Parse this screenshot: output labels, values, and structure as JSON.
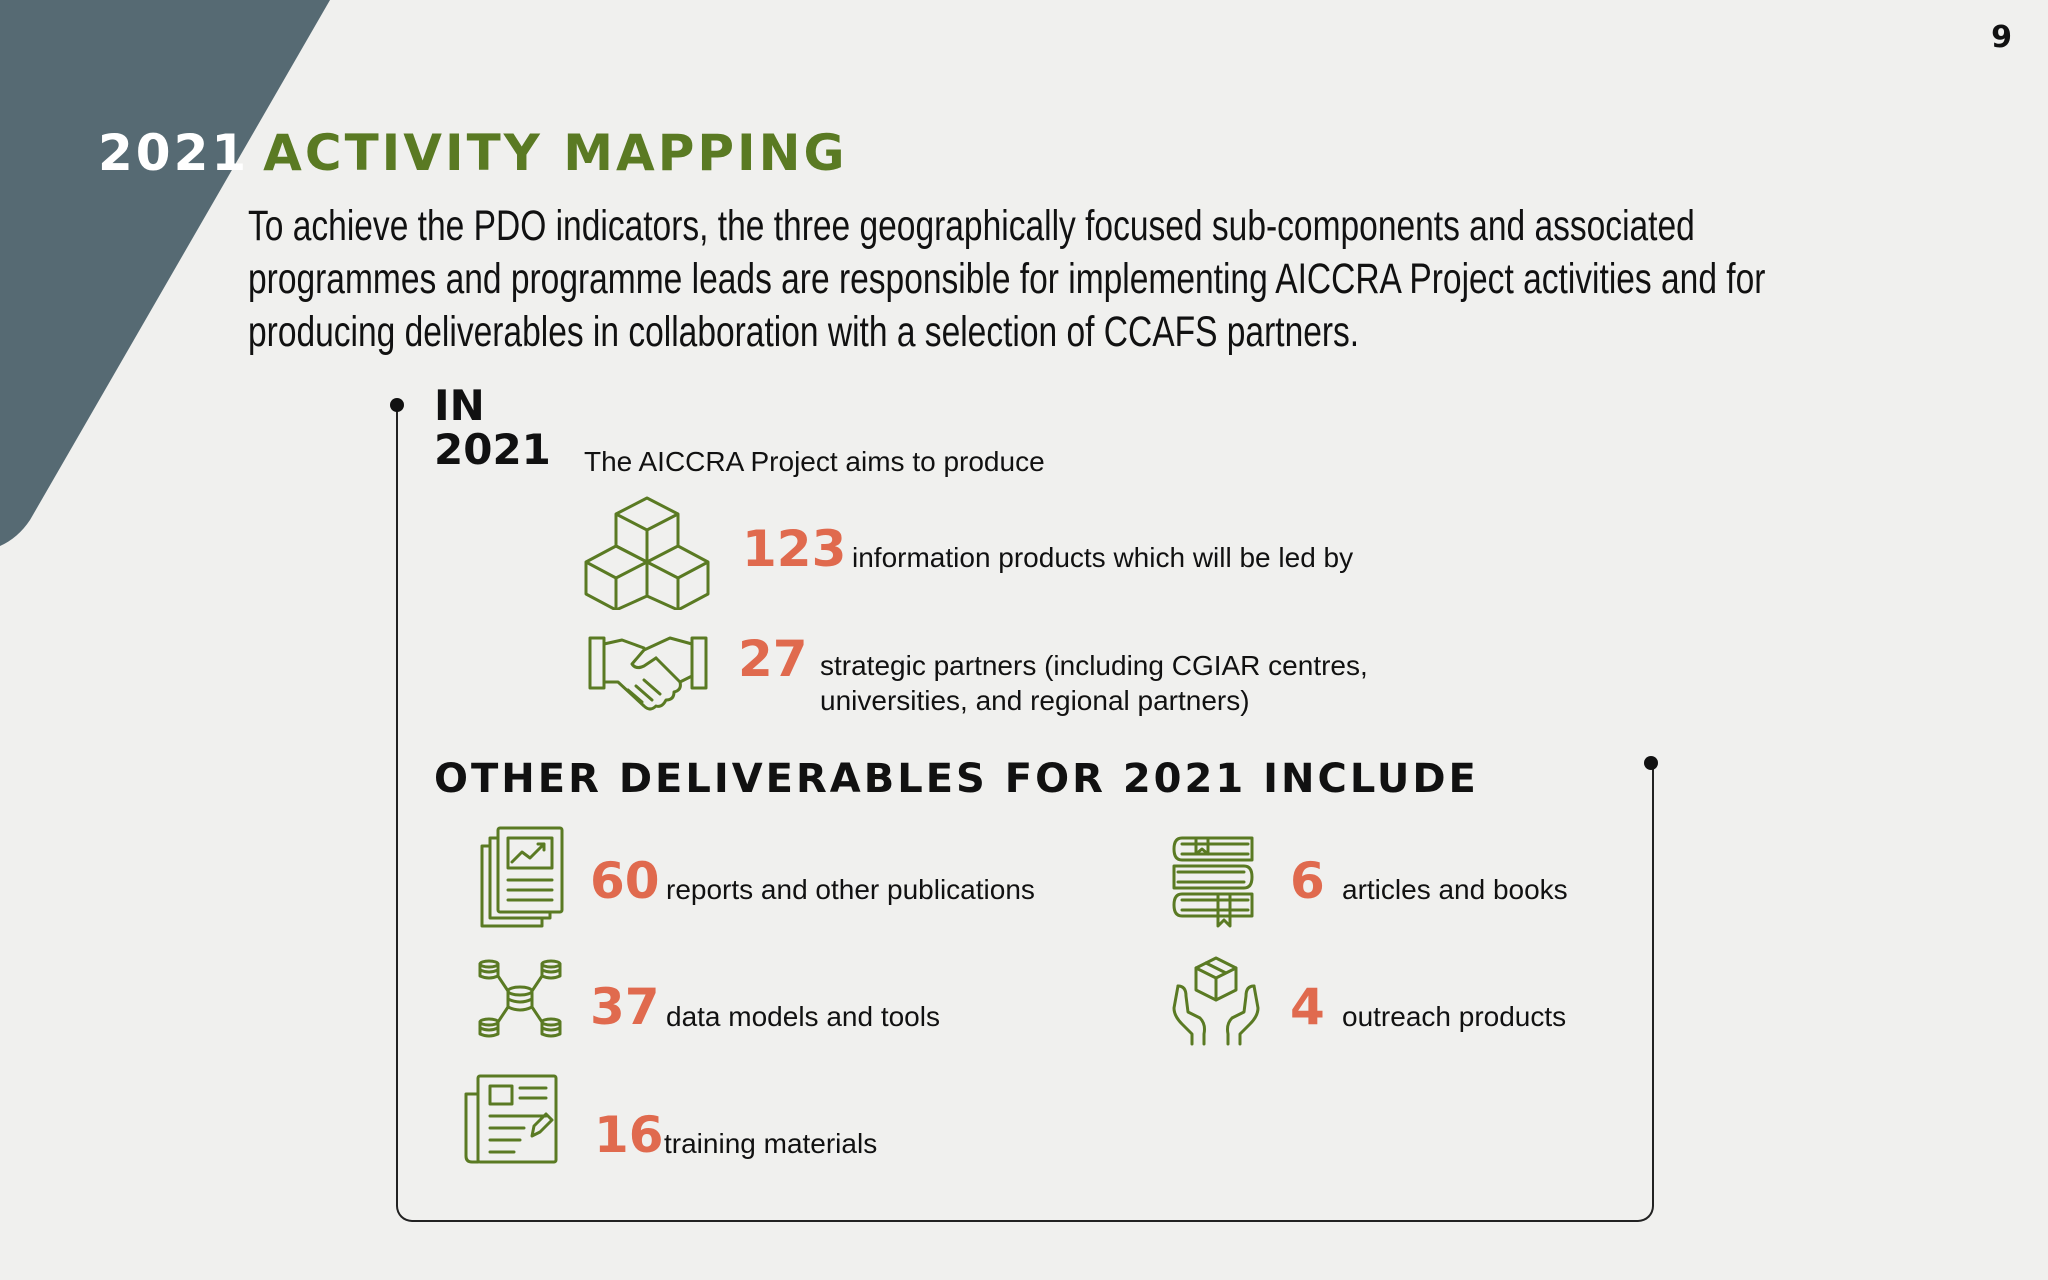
{
  "page_number": "9",
  "title": {
    "year": "2021",
    "main": "ACTIVITY MAPPING"
  },
  "intro_text": "To achieve the PDO indicators, the three geographically focused sub-components and associated programmes and programme leads are responsible for implementing AICCRA Project activities and for producing deliverables in collaboration with a selection of CCAFS partners.",
  "in_year": {
    "line1": "IN",
    "line2": "2021"
  },
  "aims_text": "The AICCRA Project aims to produce",
  "primary": [
    {
      "number": "123",
      "text": "information products which will be led by",
      "icon": "boxes-icon"
    },
    {
      "number": "27",
      "text_line1": "strategic partners (including CGIAR centres,",
      "text_line2": "universities, and regional partners)",
      "icon": "handshake-icon"
    }
  ],
  "other_title": "OTHER DELIVERABLES FOR 2021 INCLUDE",
  "deliverables": [
    {
      "number": "60",
      "text": "reports and other publications",
      "icon": "report-icon"
    },
    {
      "number": "37",
      "text": "data models and tools",
      "icon": "data-network-icon"
    },
    {
      "number": "16",
      "text": "training materials",
      "icon": "training-document-icon"
    },
    {
      "number": "6",
      "text": "articles and books",
      "icon": "books-icon"
    },
    {
      "number": "4",
      "text": "outreach products",
      "icon": "hands-box-icon"
    }
  ],
  "colors": {
    "accent_green": "#5a7a23",
    "number_orange": "#e06a4e",
    "slate": "#566a73",
    "background": "#f0f0ee"
  }
}
